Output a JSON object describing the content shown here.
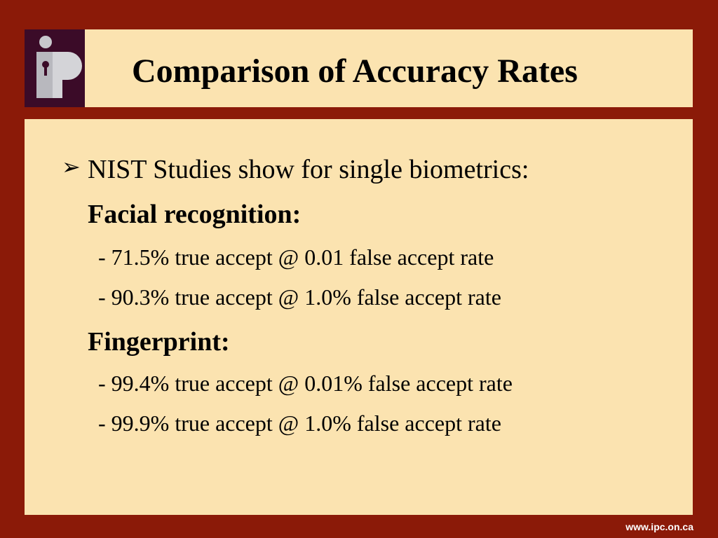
{
  "header": {
    "title": "Comparison of Accuracy Rates"
  },
  "body": {
    "bullet": "NIST Studies show for single biometrics:",
    "sections": [
      {
        "heading": "Facial recognition:",
        "items": [
          "- 71.5% true accept @ 0.01 false accept rate",
          "- 90.3% true accept @ 1.0% false accept rate"
        ]
      },
      {
        "heading": "Fingerprint:",
        "items": [
          "- 99.4% true accept @ 0.01% false accept rate",
          "- 99.9% true accept @ 1.0% false accept rate"
        ]
      }
    ]
  },
  "footer": "www.ipc.on.ca"
}
